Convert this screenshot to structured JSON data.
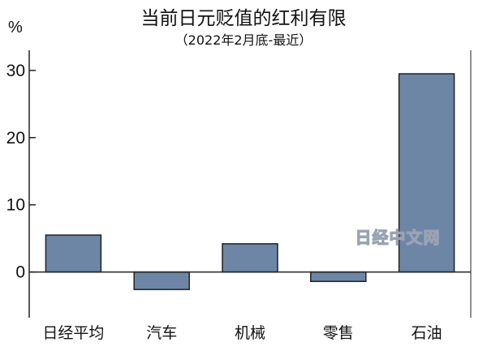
{
  "chart_data": {
    "type": "bar",
    "title": "当前日元贬值的红利有限",
    "subtitle": "（2022年2月底-最近）",
    "ylabel": "%",
    "categories": [
      "日经平均",
      "汽车",
      "机械",
      "零售",
      "石油"
    ],
    "values": [
      5.5,
      -2.6,
      4.2,
      -1.4,
      29.5
    ],
    "yticks": [
      0,
      10,
      20,
      30
    ],
    "ylim": [
      -6.8,
      33
    ],
    "grid": false,
    "bar_color": "#6d86a6"
  },
  "watermark": "日经中文网"
}
